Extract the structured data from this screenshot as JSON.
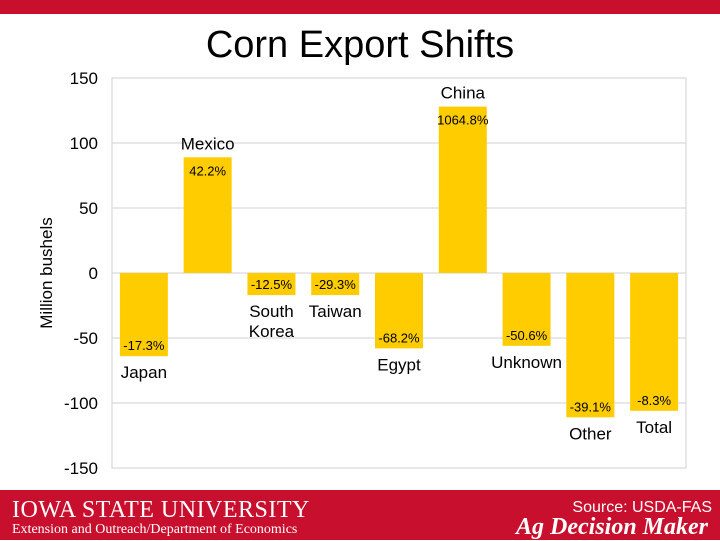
{
  "slide": {
    "title": "Corn Export Shifts",
    "colors": {
      "brand_red": "#C8102E",
      "bar": "#FFCC00",
      "grid": "#d0d0d0"
    }
  },
  "footer": {
    "university": "IOWA STATE UNIVERSITY",
    "department": "Extension and Outreach/Department of Economics",
    "source": "Source: USDA-FAS",
    "program": "Ag Decision Maker"
  },
  "chart_data": {
    "type": "bar",
    "title": "",
    "xlabel": "",
    "ylabel": "Million bushels",
    "ylim": [
      -150,
      150
    ],
    "yticks": [
      "150",
      "100",
      "50",
      "0",
      "-50",
      "-100",
      "-150"
    ],
    "grid": true,
    "legend": "none",
    "categories": [
      "Japan",
      "Mexico",
      "South Korea",
      "Taiwan",
      "Egypt",
      "China",
      "Unknown",
      "Other",
      "Total"
    ],
    "values": [
      -64,
      89,
      -17,
      -17,
      -58,
      128,
      -56,
      -111,
      -106
    ],
    "data_labels": [
      "-17.3%",
      "42.2%",
      "-12.5%",
      "-29.3%",
      "-68.2%",
      "1064.8%",
      "-50.6%",
      "-39.1%",
      "-8.3%"
    ]
  }
}
